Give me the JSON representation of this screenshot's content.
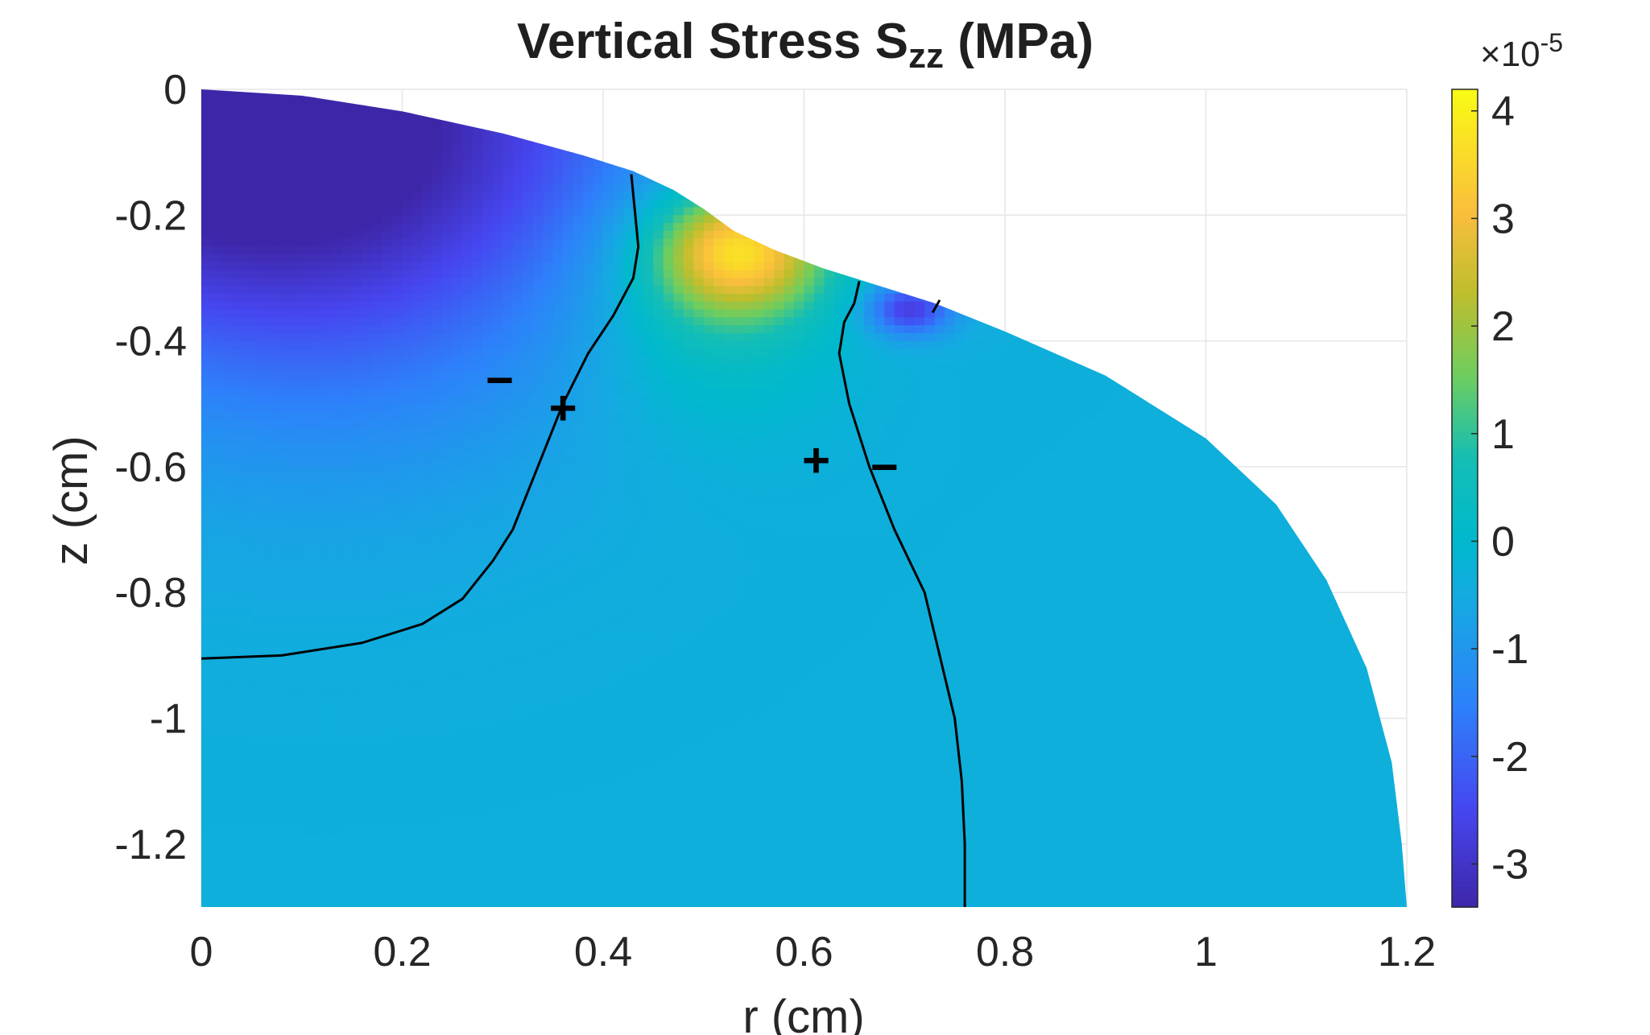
{
  "chart_data": {
    "type": "heatmap",
    "title": "Vertical  Stress  S",
    "title_subscript": "zz",
    "title_unit": "  (MPa)",
    "xlabel": "r (cm)",
    "ylabel": "z (cm)",
    "xlim": [
      0,
      1.2
    ],
    "ylim": [
      -1.3,
      0
    ],
    "xticks": [
      0,
      0.2,
      0.4,
      0.6,
      0.8,
      1,
      1.2
    ],
    "xtick_labels": [
      "0",
      "0.2",
      "0.4",
      "0.6",
      "0.8",
      "1",
      "1.2"
    ],
    "yticks": [
      0,
      -0.2,
      -0.4,
      -0.6,
      -0.8,
      -1,
      -1.2
    ],
    "ytick_labels": [
      "0",
      "-0.2",
      "-0.4",
      "-0.6",
      "-0.8",
      "-1",
      "-1.2"
    ],
    "grid": true,
    "colorbar": {
      "range": [
        -3.4,
        4.2
      ],
      "ticks": [
        4,
        3,
        2,
        1,
        0,
        -1,
        -2,
        -3
      ],
      "tick_labels": [
        "4",
        "3",
        "2",
        "1",
        "0",
        "-1",
        "-2",
        "-3"
      ],
      "multiplier_base": "×10",
      "multiplier_exp": "-5",
      "colormap": "parula"
    },
    "domain_boundary": [
      [
        0,
        0
      ],
      [
        0.1,
        -0.01
      ],
      [
        0.2,
        -0.035
      ],
      [
        0.3,
        -0.07
      ],
      [
        0.38,
        -0.105
      ],
      [
        0.43,
        -0.13
      ],
      [
        0.47,
        -0.16
      ],
      [
        0.5,
        -0.19
      ],
      [
        0.53,
        -0.225
      ],
      [
        0.57,
        -0.255
      ],
      [
        0.62,
        -0.285
      ],
      [
        0.66,
        -0.305
      ],
      [
        0.7,
        -0.325
      ],
      [
        0.73,
        -0.34
      ],
      [
        0.8,
        -0.385
      ],
      [
        0.9,
        -0.455
      ],
      [
        1.0,
        -0.555
      ],
      [
        1.07,
        -0.66
      ],
      [
        1.12,
        -0.78
      ],
      [
        1.16,
        -0.92
      ],
      [
        1.185,
        -1.07
      ],
      [
        1.195,
        -1.2
      ],
      [
        1.2,
        -1.3
      ]
    ],
    "field_features": [
      {
        "name": "compression-center",
        "r": 0.02,
        "z": -0.02,
        "value": -3.3,
        "sigma_r": 0.28,
        "sigma_z": 0.22
      },
      {
        "name": "compression-lobe",
        "r": 0.12,
        "z": -0.3,
        "value": -1.2,
        "sigma_r": 0.2,
        "sigma_z": 0.25
      },
      {
        "name": "tension-peak",
        "r": 0.535,
        "z": -0.255,
        "value": 3.6,
        "sigma_r": 0.06,
        "sigma_z": 0.07
      },
      {
        "name": "tension-spread",
        "r": 0.51,
        "z": -0.33,
        "value": 1.1,
        "sigma_r": 0.09,
        "sigma_z": 0.14
      },
      {
        "name": "compression-spot",
        "r": 0.705,
        "z": -0.35,
        "value": -2.4,
        "sigma_r": 0.03,
        "sigma_z": 0.03
      }
    ],
    "zero_contours": [
      [
        [
          0,
          -0.905
        ],
        [
          0.08,
          -0.9
        ],
        [
          0.16,
          -0.88
        ],
        [
          0.22,
          -0.85
        ],
        [
          0.26,
          -0.81
        ],
        [
          0.29,
          -0.75
        ],
        [
          0.31,
          -0.7
        ],
        [
          0.325,
          -0.64
        ],
        [
          0.34,
          -0.58
        ],
        [
          0.36,
          -0.5
        ],
        [
          0.385,
          -0.42
        ],
        [
          0.41,
          -0.36
        ],
        [
          0.43,
          -0.3
        ],
        [
          0.435,
          -0.25
        ],
        [
          0.432,
          -0.2
        ],
        [
          0.428,
          -0.135
        ]
      ],
      [
        [
          0.655,
          -0.305
        ],
        [
          0.65,
          -0.34
        ],
        [
          0.64,
          -0.37
        ],
        [
          0.635,
          -0.42
        ],
        [
          0.645,
          -0.5
        ],
        [
          0.665,
          -0.6
        ],
        [
          0.69,
          -0.7
        ],
        [
          0.72,
          -0.8
        ],
        [
          0.735,
          -0.9
        ],
        [
          0.75,
          -1.0
        ],
        [
          0.757,
          -1.1
        ],
        [
          0.76,
          -1.2
        ],
        [
          0.76,
          -1.3
        ]
      ],
      [
        [
          0.735,
          -0.335
        ],
        [
          0.728,
          -0.355
        ]
      ]
    ],
    "annotations": [
      {
        "text": "−",
        "r": 0.297,
        "z": -0.465
      },
      {
        "text": "+",
        "r": 0.36,
        "z": -0.51
      },
      {
        "text": "+",
        "r": 0.612,
        "z": -0.593
      },
      {
        "text": "−",
        "r": 0.68,
        "z": -0.603
      }
    ]
  }
}
